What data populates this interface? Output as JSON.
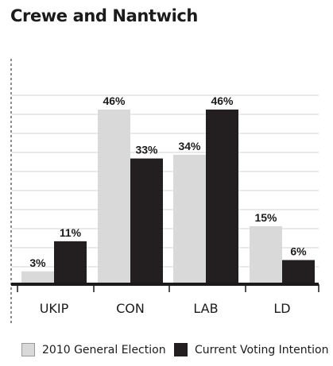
{
  "title": "Crewe and Nantwich",
  "colors": {
    "series_2010": "#d9d9d9",
    "series_current": "#231f20",
    "grid": "#d4d4d4",
    "axis": "#1b1b1b"
  },
  "chart_data": {
    "type": "bar",
    "title": "Crewe and Nantwich",
    "categories": [
      "UKIP",
      "CON",
      "LAB",
      "LD"
    ],
    "series": [
      {
        "name": "2010 General Election",
        "values": [
          3,
          46,
          34,
          15
        ],
        "labels": [
          "3%",
          "46%",
          "34%",
          "15%"
        ]
      },
      {
        "name": "Current Voting Intention",
        "values": [
          11,
          33,
          46,
          6
        ],
        "labels": [
          "11%",
          "33%",
          "46%",
          "6%"
        ]
      }
    ],
    "ylim": [
      0,
      46
    ],
    "grid": true,
    "legend_position": "bottom"
  }
}
